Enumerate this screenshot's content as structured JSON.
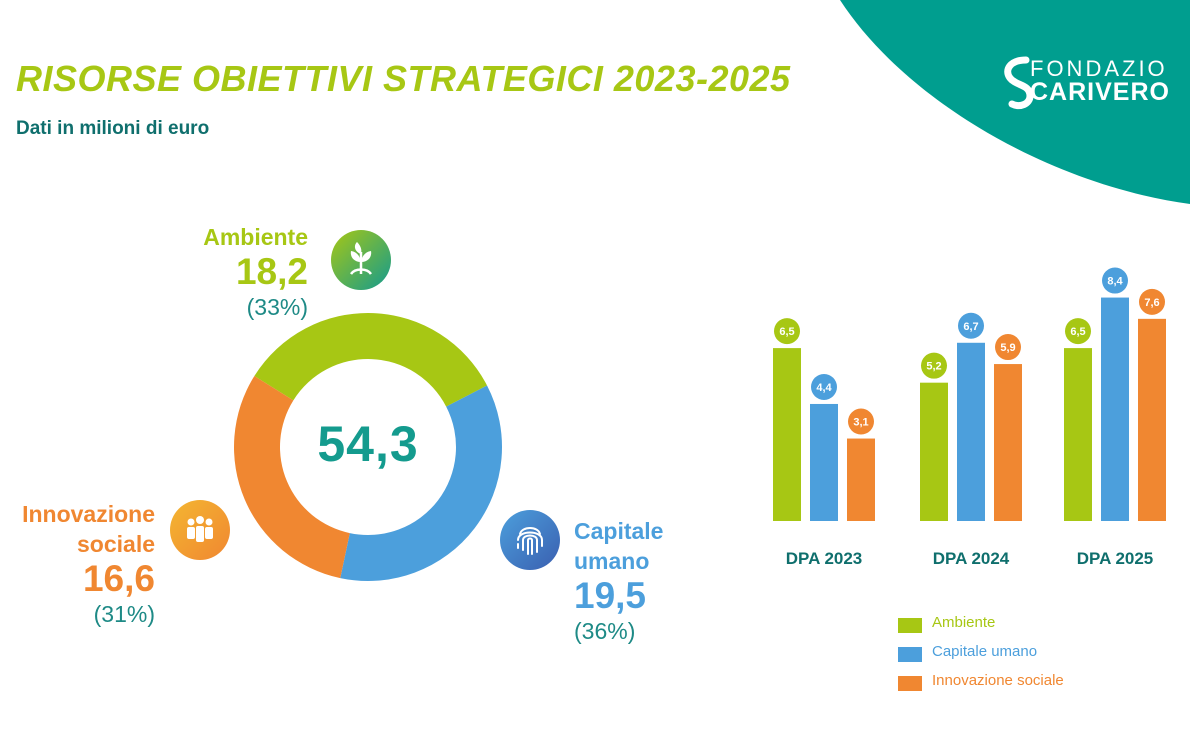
{
  "header": {
    "title": "RISORSE OBIETTIVI STRATEGICI 2023-2025",
    "subtitle": "Dati in milioni di euro",
    "title_color": "#a7c714",
    "subtitle_color": "#0f6f6d",
    "corner_color": "#009e8f"
  },
  "logo": {
    "line1": "FONDAZIO",
    "line2": "CARIVERO"
  },
  "colors": {
    "ambiente": "#a7c714",
    "capitale": "#4c9fdc",
    "innovazione": "#f08731",
    "total": "#149b8e",
    "pct": "#1e8a86"
  },
  "donut": {
    "total": "54,3",
    "segments": [
      {
        "key": "ambiente",
        "name": "Ambiente",
        "value_label": "18,2",
        "pct_label": "(33%)",
        "value": 18.2,
        "icon": "leaf-icon"
      },
      {
        "key": "capitale",
        "name_line1": "Capitale",
        "name_line2": "umano",
        "value_label": "19,5",
        "pct_label": "(36%)",
        "value": 19.5,
        "icon": "fingerprint-icon"
      },
      {
        "key": "innovazione",
        "name_line1": "Innovazione",
        "name_line2": "sociale",
        "value_label": "16,6",
        "pct_label": "(31%)",
        "value": 16.6,
        "icon": "people-icon"
      }
    ]
  },
  "chart_data": {
    "type": "bar",
    "categories": [
      "DPA 2023",
      "DPA 2024",
      "DPA 2025"
    ],
    "series": [
      {
        "name": "Ambiente",
        "color": "#a7c714",
        "values": [
          6.5,
          5.2,
          6.5
        ],
        "labels": [
          "6,5",
          "5,2",
          "6,5"
        ]
      },
      {
        "name": "Capitale umano",
        "color": "#4c9fdc",
        "values": [
          4.4,
          6.7,
          8.4
        ],
        "labels": [
          "4,4",
          "6,7",
          "8,4"
        ]
      },
      {
        "name": "Innovazione sociale",
        "color": "#f08731",
        "values": [
          3.1,
          5.9,
          7.6
        ],
        "labels": [
          "3,1",
          "5,9",
          "7,6"
        ]
      }
    ],
    "title": "",
    "xlabel": "",
    "ylabel": "",
    "ylim": [
      0,
      10
    ],
    "legend": "bottom-right"
  }
}
